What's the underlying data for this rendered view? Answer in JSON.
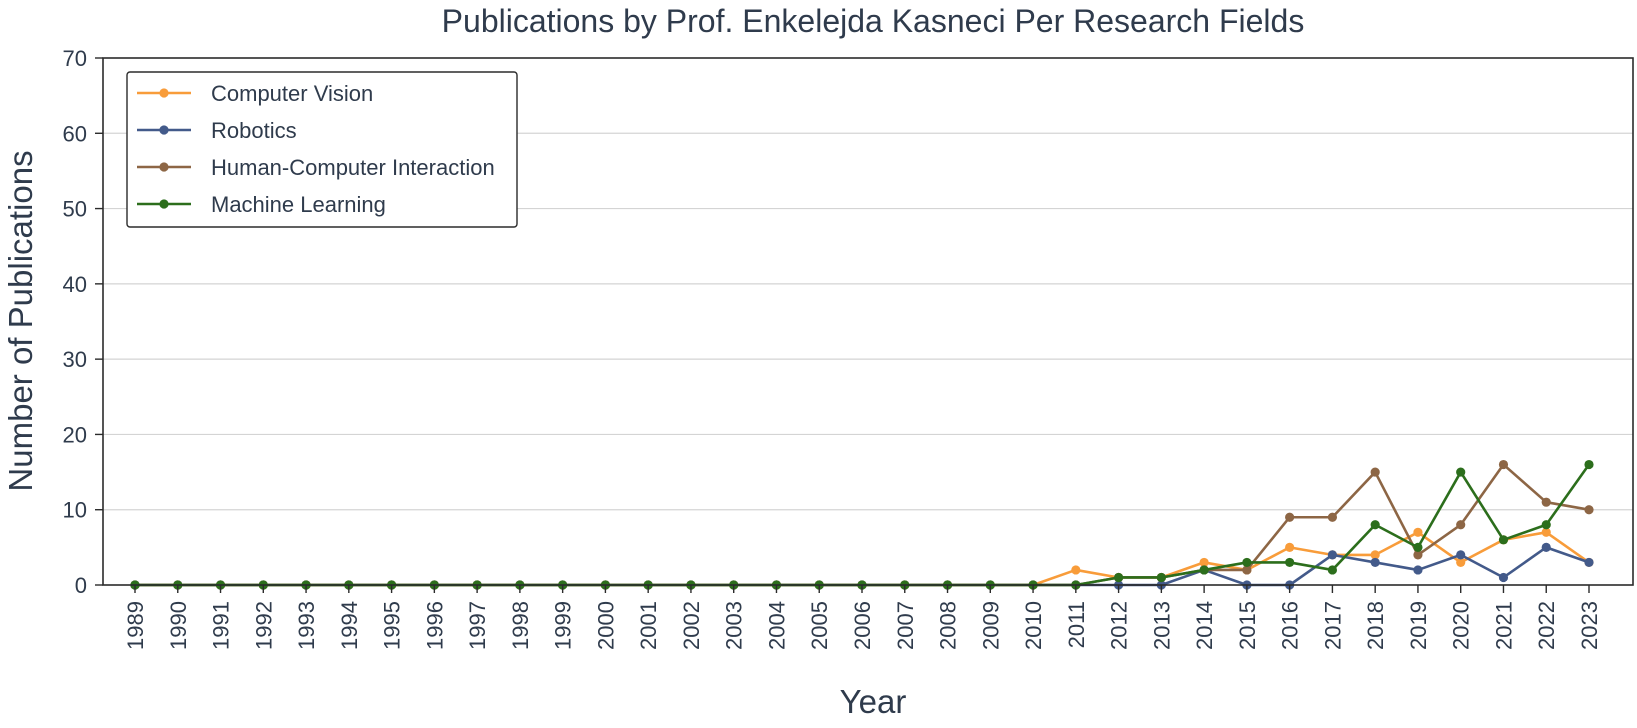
{
  "chart_data": {
    "type": "line",
    "title": "Publications by Prof. Enkelejda Kasneci Per Research Fields",
    "xlabel": "Year",
    "ylabel": "Number of Publications",
    "ylim": [
      0,
      70
    ],
    "yticks": [
      "0",
      "10",
      "20",
      "30",
      "40",
      "50",
      "60",
      "70"
    ],
    "grid": "horizontal",
    "legend_position": "top-left",
    "x": [
      "1989",
      "1990",
      "1991",
      "1992",
      "1993",
      "1994",
      "1995",
      "1996",
      "1997",
      "1998",
      "1999",
      "2000",
      "2001",
      "2002",
      "2003",
      "2004",
      "2005",
      "2006",
      "2007",
      "2008",
      "2009",
      "2010",
      "2011",
      "2012",
      "2013",
      "2014",
      "2015",
      "2016",
      "2017",
      "2018",
      "2019",
      "2020",
      "2021",
      "2022",
      "2023"
    ],
    "series": [
      {
        "name": "Computer Vision",
        "color": "#f89c3a",
        "values": [
          0,
          0,
          0,
          0,
          0,
          0,
          0,
          0,
          0,
          0,
          0,
          0,
          0,
          0,
          0,
          0,
          0,
          0,
          0,
          0,
          0,
          0,
          2,
          1,
          1,
          3,
          2,
          5,
          4,
          4,
          7,
          3,
          6,
          7,
          3
        ]
      },
      {
        "name": "Robotics",
        "color": "#435a8a",
        "values": [
          0,
          0,
          0,
          0,
          0,
          0,
          0,
          0,
          0,
          0,
          0,
          0,
          0,
          0,
          0,
          0,
          0,
          0,
          0,
          0,
          0,
          0,
          0,
          0,
          0,
          2,
          0,
          0,
          4,
          3,
          2,
          4,
          1,
          5,
          3
        ]
      },
      {
        "name": "Human-Computer Interaction",
        "color": "#8d6645",
        "values": [
          0,
          0,
          0,
          0,
          0,
          0,
          0,
          0,
          0,
          0,
          0,
          0,
          0,
          0,
          0,
          0,
          0,
          0,
          0,
          0,
          0,
          0,
          0,
          1,
          1,
          2,
          2,
          9,
          9,
          15,
          4,
          8,
          16,
          11,
          10
        ]
      },
      {
        "name": "Machine Learning",
        "color": "#2c6e1c",
        "values": [
          0,
          0,
          0,
          0,
          0,
          0,
          0,
          0,
          0,
          0,
          0,
          0,
          0,
          0,
          0,
          0,
          0,
          0,
          0,
          0,
          0,
          0,
          0,
          1,
          1,
          2,
          3,
          3,
          2,
          8,
          5,
          15,
          6,
          8,
          16
        ]
      }
    ]
  }
}
